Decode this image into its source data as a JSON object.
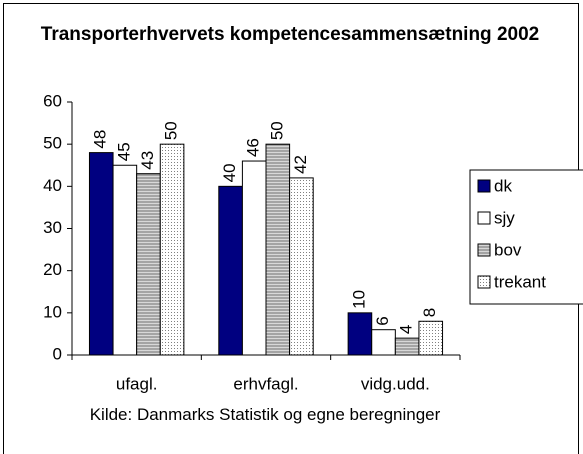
{
  "chart_data": {
    "type": "bar",
    "title": "Transporterhvervets kompetencesammensætning 2002",
    "x_label": "Kilde: Danmarks Statistik og egne beregninger",
    "categories": [
      "ufagl.",
      "erhvfagl.",
      "vidg.udd."
    ],
    "series": [
      {
        "name": "dk",
        "color": "#000080",
        "values": [
          48,
          40,
          10
        ]
      },
      {
        "name": "sjy",
        "color": "#ffffff",
        "values": [
          45,
          46,
          6
        ]
      },
      {
        "name": "bov",
        "color": "#b0b0b0",
        "values": [
          43,
          50,
          4
        ]
      },
      {
        "name": "trekant",
        "color": "#f0f0f0",
        "values": [
          50,
          42,
          8
        ]
      }
    ],
    "ylim": [
      0,
      60
    ],
    "yticks": [
      0,
      10,
      20,
      30,
      40,
      50,
      60
    ],
    "grid": false,
    "legend": "right"
  }
}
